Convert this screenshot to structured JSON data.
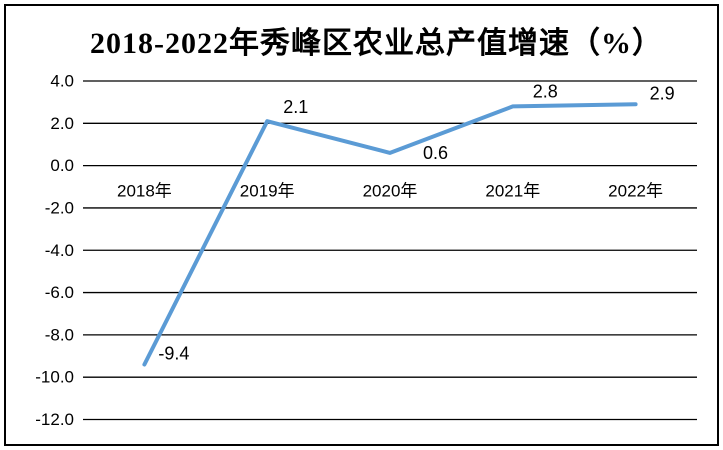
{
  "chart_data": {
    "type": "line",
    "title": "2018-2022年秀峰区农业总产值增速（%）",
    "categories": [
      "2018年",
      "2019年",
      "2020年",
      "2021年",
      "2022年"
    ],
    "values": [
      -9.4,
      2.1,
      0.6,
      2.8,
      2.9
    ],
    "data_labels": [
      "-9.4",
      "2.1",
      "0.6",
      "2.8",
      "2.9"
    ],
    "ytick_labels": [
      "4.0",
      "2.0",
      "0.0",
      "-2.0",
      "-4.0",
      "-6.0",
      "-8.0",
      "-10.0",
      "-12.0"
    ],
    "ytick_values": [
      4,
      2,
      0,
      -2,
      -4,
      -6,
      -8,
      -10,
      -12
    ],
    "ylim": [
      -12,
      4
    ],
    "grid": true,
    "legend": false,
    "line_color": "#5B9BD5",
    "grid_color": "#000000",
    "text_color": "#000000",
    "background": "#FFFFFF"
  }
}
